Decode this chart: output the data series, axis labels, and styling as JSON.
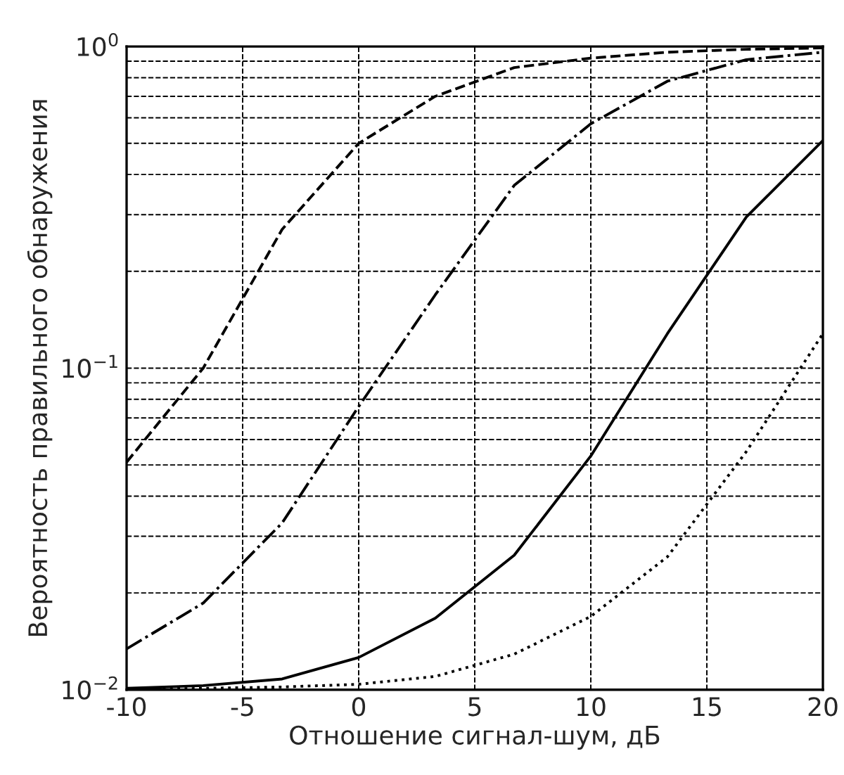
{
  "chart_data": {
    "type": "line",
    "xlabel": "Отношение сигнал-шум, дБ",
    "ylabel": "Вероятность правильного обнаружения",
    "log": "y",
    "grid": true,
    "marker": "none",
    "xlim": [
      -10,
      20
    ],
    "xticks": [
      -10,
      -5,
      0,
      5,
      10,
      15,
      20
    ],
    "ylim": [
      0.01,
      1
    ],
    "yticks": [
      {
        "value": 0.01,
        "label": "10$^{−2}$"
      },
      {
        "value": 0.1,
        "label": "10$^{−1}$"
      },
      {
        "value": 1,
        "label": "10$^{0}$"
      }
    ],
    "series": [
      {
        "color": "#000000",
        "line_style": "dashed",
        "x": [
          -10,
          -6.7,
          -3.3,
          0,
          3.3,
          6.7,
          10,
          13.3,
          16.7,
          20
        ],
        "values": [
          0.051,
          0.1,
          0.27,
          0.5,
          0.7,
          0.86,
          0.92,
          0.96,
          0.98,
          0.99
        ]
      },
      {
        "color": "#000000",
        "line_style": "dashdot",
        "x": [
          -10,
          -6.7,
          -3.3,
          0,
          3.3,
          6.7,
          10,
          13.3,
          16.7,
          20
        ],
        "values": [
          0.0134,
          0.0186,
          0.033,
          0.076,
          0.169,
          0.37,
          0.575,
          0.78,
          0.91,
          0.96
        ]
      },
      {
        "color": "#000000",
        "line_style": "solid",
        "x": [
          -10,
          -6.7,
          -3.3,
          0,
          3.3,
          6.7,
          10,
          13.3,
          16.7,
          20
        ],
        "values": [
          0.0101,
          0.0103,
          0.0108,
          0.0126,
          0.0167,
          0.0262,
          0.0533,
          0.128,
          0.295,
          0.51
        ]
      },
      {
        "color": "#000000",
        "line_style": "dotted",
        "x": [
          -10,
          -6.7,
          -3.3,
          0,
          3.3,
          6.7,
          10,
          13.3,
          16.7,
          20
        ],
        "values": [
          0.01,
          0.0101,
          0.0102,
          0.0104,
          0.011,
          0.0129,
          0.0169,
          0.0259,
          0.055,
          0.128
        ]
      }
    ]
  }
}
